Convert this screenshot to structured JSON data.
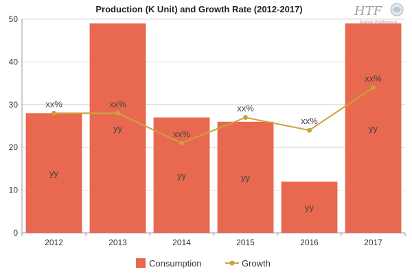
{
  "chart_data": {
    "type": "bar",
    "title": "Production (K Unit) and Growth Rate (2012-2017)",
    "categories": [
      "2012",
      "2013",
      "2014",
      "2015",
      "2016",
      "2017"
    ],
    "ylim": [
      0,
      50
    ],
    "yticks": [
      "0",
      "10",
      "20",
      "30",
      "40",
      "50"
    ],
    "grid": true,
    "legend_position": "bottom",
    "series": [
      {
        "name": "Consumption",
        "type": "bar",
        "color": "#e8694f",
        "values": [
          28,
          49,
          27,
          26,
          12,
          49
        ],
        "labels": [
          "yy",
          "yy",
          "yy",
          "yy",
          "yy",
          "yy"
        ]
      },
      {
        "name": "Growth",
        "type": "line",
        "color": "#c8a33c",
        "values": [
          28,
          28,
          21,
          27,
          24,
          34
        ],
        "labels": [
          "xx%",
          "xx%",
          "xx%",
          "xx%",
          "xx%",
          "xx%"
        ]
      }
    ]
  },
  "logo": {
    "text": "HTF",
    "subtext": "Market Intelligence"
  }
}
